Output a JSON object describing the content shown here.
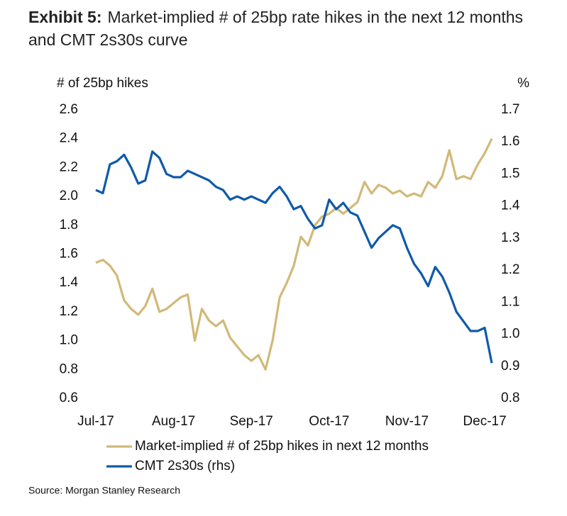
{
  "chart_data": {
    "type": "line",
    "exhibit": "Exhibit 5:",
    "title": "Market-implied # of 25bp rate hikes in the next 12 months and CMT 2s30s curve",
    "y_label": "# of 25bp hikes",
    "y2_label": "%",
    "source": "Source: Morgan Stanley Research",
    "categories": [
      "Jul-17",
      null,
      null,
      null,
      null,
      null,
      null,
      null,
      null,
      null,
      null,
      "Aug-17",
      null,
      null,
      null,
      null,
      null,
      null,
      null,
      null,
      null,
      null,
      "Sep-17",
      null,
      null,
      null,
      null,
      null,
      null,
      null,
      null,
      null,
      null,
      "Oct-17",
      null,
      null,
      null,
      null,
      null,
      null,
      null,
      null,
      null,
      null,
      "Nov-17",
      null,
      null,
      null,
      null,
      null,
      null,
      null,
      null,
      null,
      null,
      "Dec-17",
      null
    ],
    "series": [
      {
        "name": "Market-implied # of 25bp hikes in next 12 months",
        "color": "#d1b978",
        "values": [
          1.54,
          1.56,
          1.52,
          1.45,
          1.28,
          1.22,
          1.18,
          1.24,
          1.36,
          1.2,
          1.22,
          1.26,
          1.3,
          1.32,
          1.0,
          1.22,
          1.14,
          1.1,
          1.14,
          1.02,
          0.96,
          0.9,
          0.86,
          0.9,
          0.8,
          1.0,
          1.3,
          1.4,
          1.52,
          1.72,
          1.66,
          1.8,
          1.86,
          1.88,
          1.92,
          1.88,
          1.92,
          1.96,
          2.1,
          2.02,
          2.08,
          2.06,
          2.02,
          2.04,
          2.0,
          2.02,
          2.0,
          2.1,
          2.06,
          2.14,
          2.32,
          2.12,
          2.14,
          2.12,
          2.22,
          2.3,
          2.4
        ]
      },
      {
        "name": "CMT 2s30s (rhs)",
        "color": "#0f5aa8",
        "axis": "y2",
        "values": [
          1.45,
          1.44,
          1.53,
          1.54,
          1.56,
          1.52,
          1.47,
          1.48,
          1.57,
          1.55,
          1.5,
          1.49,
          1.49,
          1.51,
          1.5,
          1.49,
          1.48,
          1.46,
          1.45,
          1.42,
          1.43,
          1.42,
          1.43,
          1.42,
          1.41,
          1.44,
          1.46,
          1.43,
          1.39,
          1.4,
          1.36,
          1.33,
          1.34,
          1.42,
          1.39,
          1.41,
          1.38,
          1.37,
          1.32,
          1.27,
          1.3,
          1.32,
          1.34,
          1.33,
          1.27,
          1.22,
          1.19,
          1.15,
          1.21,
          1.18,
          1.13,
          1.07,
          1.04,
          1.01,
          1.01,
          1.02,
          0.91
        ]
      }
    ],
    "ylim": [
      0.6,
      2.6
    ],
    "yticks": [
      0.6,
      0.8,
      {
        "value": 1,
        "label": "1.0"
      },
      1.2,
      1.4,
      1.6,
      1.8,
      {
        "value": 2,
        "label": "2.0"
      },
      2.2,
      2.4,
      2.6
    ],
    "y2lim": [
      0.8,
      1.7
    ],
    "y2ticks": [
      0.8,
      0.9,
      {
        "value": 1,
        "label": "1.0"
      },
      1.1,
      1.2,
      1.3,
      1.4,
      1.5,
      1.6,
      1.7
    ],
    "grid": false
  }
}
